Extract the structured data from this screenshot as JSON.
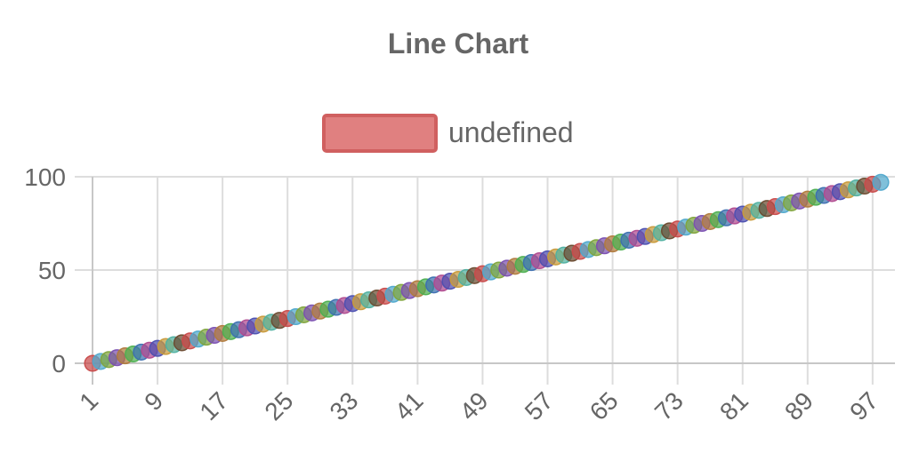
{
  "chart_data": {
    "type": "scatter",
    "title": "Line Chart",
    "xlabel": "",
    "ylabel": "",
    "legend": {
      "position": "top",
      "label": "undefined",
      "fill": "#e08080",
      "stroke": "#d06060"
    },
    "x_ticks": [
      "1",
      "9",
      "17",
      "25",
      "33",
      "41",
      "49",
      "57",
      "65",
      "73",
      "81",
      "89",
      "97"
    ],
    "y_ticks": [
      "0",
      "50",
      "100"
    ],
    "xlim": [
      1,
      98
    ],
    "ylim": [
      0,
      100
    ],
    "grid": true,
    "series": [
      {
        "x": [
          1,
          2,
          3,
          4,
          5,
          6,
          7,
          8,
          9,
          10,
          11,
          12,
          13,
          14,
          15,
          16,
          17,
          18,
          19,
          20,
          21,
          22,
          23,
          24,
          25,
          26,
          27,
          28,
          29,
          30,
          31,
          32,
          33,
          34,
          35,
          36,
          37,
          38,
          39,
          40,
          41,
          42,
          43,
          44,
          45,
          46,
          47,
          48,
          49,
          50,
          51,
          52,
          53,
          54,
          55,
          56,
          57,
          58,
          59,
          60,
          61,
          62,
          63,
          64,
          65,
          66,
          67,
          68,
          69,
          70,
          71,
          72,
          73,
          74,
          75,
          76,
          77,
          78,
          79,
          80,
          81,
          82,
          83,
          84,
          85,
          86,
          87,
          88,
          89,
          90,
          91,
          92,
          93,
          94,
          95,
          96,
          97,
          98
        ],
        "values": [
          0,
          1,
          2,
          3,
          4,
          5,
          6,
          7,
          8,
          9,
          10,
          11,
          12,
          13,
          14,
          15,
          16,
          17,
          18,
          19,
          20,
          21,
          22,
          23,
          24,
          25,
          26,
          27,
          28,
          29,
          30,
          31,
          32,
          33,
          34,
          35,
          36,
          37,
          38,
          39,
          40,
          41,
          42,
          43,
          44,
          45,
          46,
          47,
          48,
          49,
          50,
          51,
          52,
          53,
          54,
          55,
          56,
          57,
          58,
          59,
          60,
          61,
          62,
          63,
          64,
          65,
          66,
          67,
          68,
          69,
          70,
          71,
          72,
          73,
          74,
          75,
          76,
          77,
          78,
          79,
          80,
          81,
          82,
          83,
          84,
          85,
          86,
          87,
          88,
          89,
          90,
          91,
          92,
          93,
          94,
          95,
          96,
          97
        ]
      }
    ],
    "point_colors": [
      "#c84a4a",
      "#4fa8cc",
      "#7fa43c",
      "#7a4fb0",
      "#b07a3c",
      "#4caf50",
      "#3c6fb0",
      "#b04a8f",
      "#4c4fb0",
      "#c89a3a",
      "#50b0a0",
      "#6a4a2f"
    ]
  }
}
